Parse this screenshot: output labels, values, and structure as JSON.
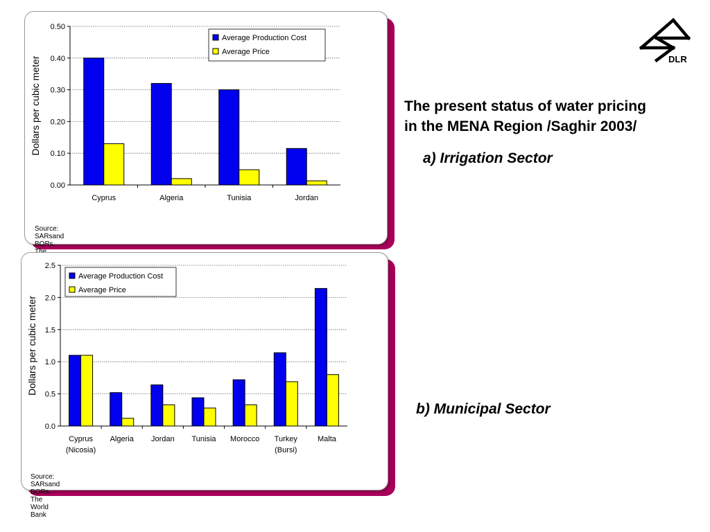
{
  "title_line1": "The present status of water pricing",
  "title_line2": "in the MENA Region /Saghir 2003/",
  "subtitle_a": "a) Irrigation Sector",
  "subtitle_b": "b) Municipal Sector",
  "logo_text": "DLR",
  "colors": {
    "production_cost": "#0000ee",
    "price": "#ffff00",
    "panel_shadow": "#a8005a"
  },
  "chart_data": [
    {
      "type": "bar",
      "ylabel": "Dollars per cubic meter",
      "ylim": [
        0,
        0.5
      ],
      "yticks": [
        "0.00",
        "0.10",
        "0.20",
        "0.30",
        "0.40",
        "0.50"
      ],
      "categories": [
        [
          "Cyprus"
        ],
        [
          "Algeria"
        ],
        [
          "Tunisia"
        ],
        [
          "Jordan"
        ]
      ],
      "series": [
        {
          "name": "Average Production Cost",
          "values": [
            0.4,
            0.32,
            0.3,
            0.115
          ]
        },
        {
          "name": "Average Price",
          "values": [
            0.13,
            0.02,
            0.048,
            0.013
          ]
        }
      ],
      "legend": "top-right",
      "grid": true,
      "source": "Source: SARsand BORs. The World Bank"
    },
    {
      "type": "bar",
      "ylabel": "Dollars per cubic meter",
      "ylim": [
        0,
        2.5
      ],
      "yticks": [
        "0.0",
        "0.5",
        "1.0",
        "1.5",
        "2.0",
        "2.5"
      ],
      "categories": [
        [
          "Cyprus",
          "(Nicosia)"
        ],
        [
          "Algeria"
        ],
        [
          "Jordan"
        ],
        [
          "Tunisia"
        ],
        [
          "Morocco"
        ],
        [
          "Turkey",
          "(Bursi)"
        ],
        [
          "Malta"
        ]
      ],
      "series": [
        {
          "name": "Average Production Cost",
          "values": [
            1.1,
            0.52,
            0.64,
            0.44,
            0.72,
            1.14,
            2.14
          ]
        },
        {
          "name": "Average Price",
          "values": [
            1.1,
            0.12,
            0.33,
            0.28,
            0.33,
            0.69,
            0.8
          ]
        }
      ],
      "legend": "top-left",
      "grid": true,
      "source": "Source: SARsand BORs. The World Bank"
    }
  ]
}
